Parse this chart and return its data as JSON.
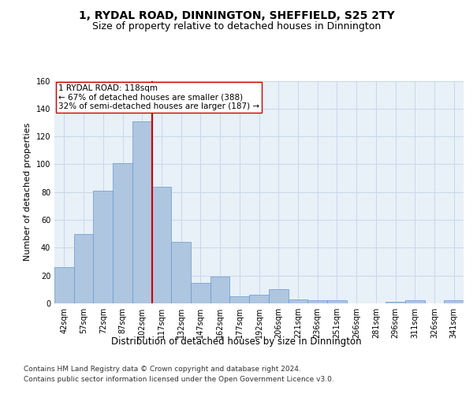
{
  "title": "1, RYDAL ROAD, DINNINGTON, SHEFFIELD, S25 2TY",
  "subtitle": "Size of property relative to detached houses in Dinnington",
  "xlabel": "Distribution of detached houses by size in Dinnington",
  "ylabel": "Number of detached properties",
  "categories": [
    "42sqm",
    "57sqm",
    "72sqm",
    "87sqm",
    "102sqm",
    "117sqm",
    "132sqm",
    "147sqm",
    "162sqm",
    "177sqm",
    "192sqm",
    "206sqm",
    "221sqm",
    "236sqm",
    "251sqm",
    "266sqm",
    "281sqm",
    "296sqm",
    "311sqm",
    "326sqm",
    "341sqm"
  ],
  "values": [
    26,
    50,
    81,
    101,
    131,
    84,
    44,
    15,
    19,
    5,
    6,
    10,
    3,
    2,
    2,
    0,
    0,
    1,
    2,
    0,
    2
  ],
  "bar_color": "#aec6e0",
  "bar_edge_color": "#6699cc",
  "grid_color": "#c8d8e8",
  "background_color": "#e8f0f8",
  "vline_x": 4.5,
  "vline_color": "#cc0000",
  "annotation_text": "1 RYDAL ROAD: 118sqm\n← 67% of detached houses are smaller (388)\n32% of semi-detached houses are larger (187) →",
  "annotation_box_color": "#ffffff",
  "annotation_box_edge": "#cc0000",
  "ylim": [
    0,
    160
  ],
  "yticks": [
    0,
    20,
    40,
    60,
    80,
    100,
    120,
    140,
    160
  ],
  "footer_line1": "Contains HM Land Registry data © Crown copyright and database right 2024.",
  "footer_line2": "Contains public sector information licensed under the Open Government Licence v3.0.",
  "title_fontsize": 10,
  "subtitle_fontsize": 9,
  "xlabel_fontsize": 8.5,
  "ylabel_fontsize": 8,
  "tick_fontsize": 7,
  "annotation_fontsize": 7.5,
  "footer_fontsize": 6.5
}
